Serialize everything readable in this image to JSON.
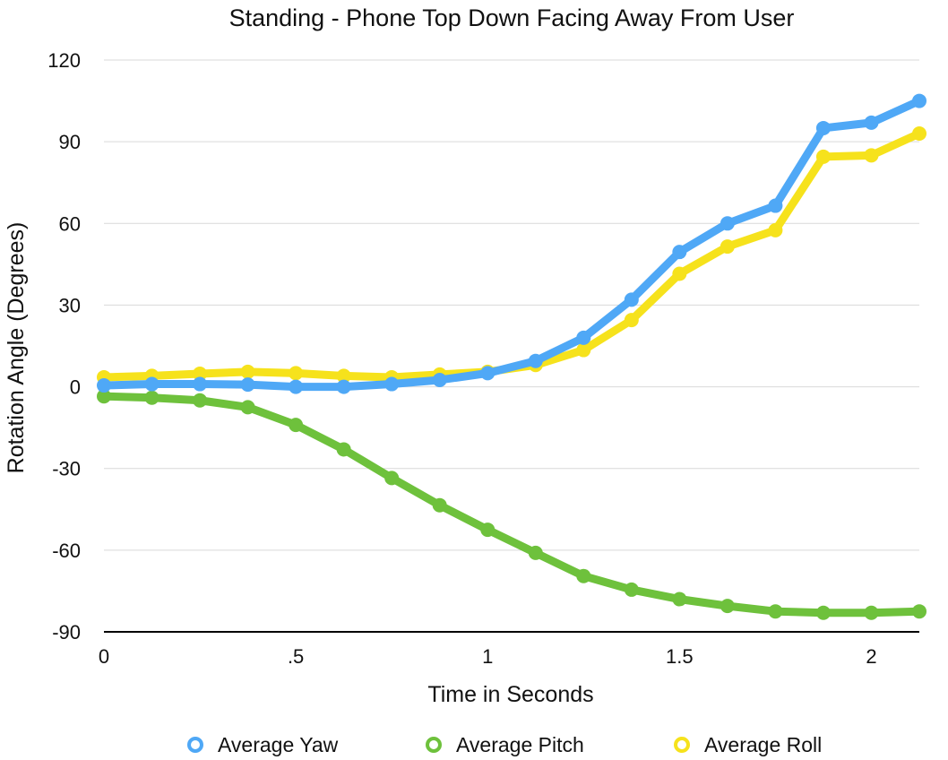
{
  "chart_data": {
    "type": "line",
    "title": "Standing - Phone Top Down Facing Away From User",
    "xlabel": "Time in Seconds",
    "ylabel": "Rotation Angle (Degrees)",
    "xlim": [
      0,
      2.125
    ],
    "ylim": [
      -90,
      120
    ],
    "x_ticks": [
      0,
      0.5,
      1,
      1.5,
      2
    ],
    "x_tick_labels": [
      "0",
      ".5",
      "1",
      "1.5",
      "2"
    ],
    "y_ticks": [
      -90,
      -60,
      -30,
      0,
      30,
      60,
      90,
      120
    ],
    "y_tick_labels": [
      "-90",
      "-60",
      "-30",
      "0",
      "30",
      "60",
      "90",
      "120"
    ],
    "grid": true,
    "legend_position": "bottom",
    "x": [
      0,
      0.125,
      0.25,
      0.375,
      0.5,
      0.625,
      0.75,
      0.875,
      1,
      1.125,
      1.25,
      1.375,
      1.5,
      1.625,
      1.75,
      1.875,
      2,
      2.125
    ],
    "series": [
      {
        "name": "Average Yaw",
        "color": "#4fa8f6",
        "values": [
          0.5,
          1,
          1,
          0.8,
          0,
          0,
          1,
          2.5,
          5,
          9.5,
          18,
          32,
          49.5,
          60,
          66.5,
          95,
          97,
          105
        ]
      },
      {
        "name": "Average Pitch",
        "color": "#6ec13c",
        "values": [
          -3.5,
          -4,
          -5,
          -7.5,
          -14,
          -23,
          -33.5,
          -43.5,
          -52.5,
          -61,
          -69.5,
          -74.5,
          -78,
          -80.5,
          -82.5,
          -83,
          -83,
          -82.5
        ]
      },
      {
        "name": "Average Roll",
        "color": "#f6e21c",
        "values": [
          3.5,
          4,
          4.8,
          5.5,
          5,
          4,
          3.5,
          4.5,
          5.5,
          8,
          13.5,
          24.5,
          41.5,
          51.5,
          57.5,
          84.5,
          85,
          93
        ]
      }
    ]
  }
}
